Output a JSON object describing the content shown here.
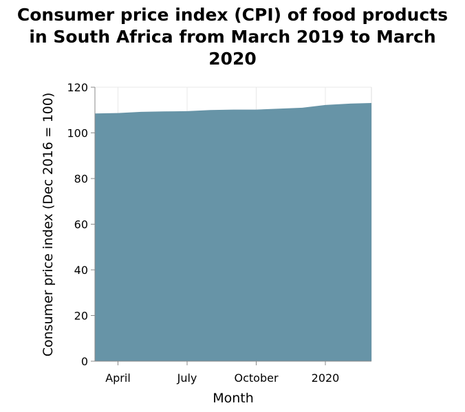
{
  "chart_data": {
    "type": "area",
    "title": [
      "Consumer price index (CPI) of food products",
      "in South Africa from March 2019 to March",
      "2020"
    ],
    "xlabel": "Month",
    "ylabel": "Consumer price index (Dec 2016 = 100)",
    "x": [
      "2019-03",
      "2019-04",
      "2019-05",
      "2019-06",
      "2019-07",
      "2019-08",
      "2019-09",
      "2019-10",
      "2019-11",
      "2019-12",
      "2020-01",
      "2020-02",
      "2020-03"
    ],
    "values": [
      108.5,
      108.7,
      109.2,
      109.4,
      109.5,
      110.0,
      110.2,
      110.2,
      110.6,
      111.0,
      112.2,
      112.8,
      113.1
    ],
    "x_ticks": [
      {
        "x": "2019-04",
        "label": "April"
      },
      {
        "x": "2019-07",
        "label": "July"
      },
      {
        "x": "2019-10",
        "label": "October"
      },
      {
        "x": "2020-01",
        "label": "2020"
      }
    ],
    "ylim": [
      0,
      120
    ],
    "y_ticks": [
      0,
      20,
      40,
      60,
      80,
      100,
      120
    ],
    "grid": true,
    "colors": {
      "area": "#6794a7",
      "grid": "#e8e8e8",
      "axis": "#888888"
    }
  }
}
